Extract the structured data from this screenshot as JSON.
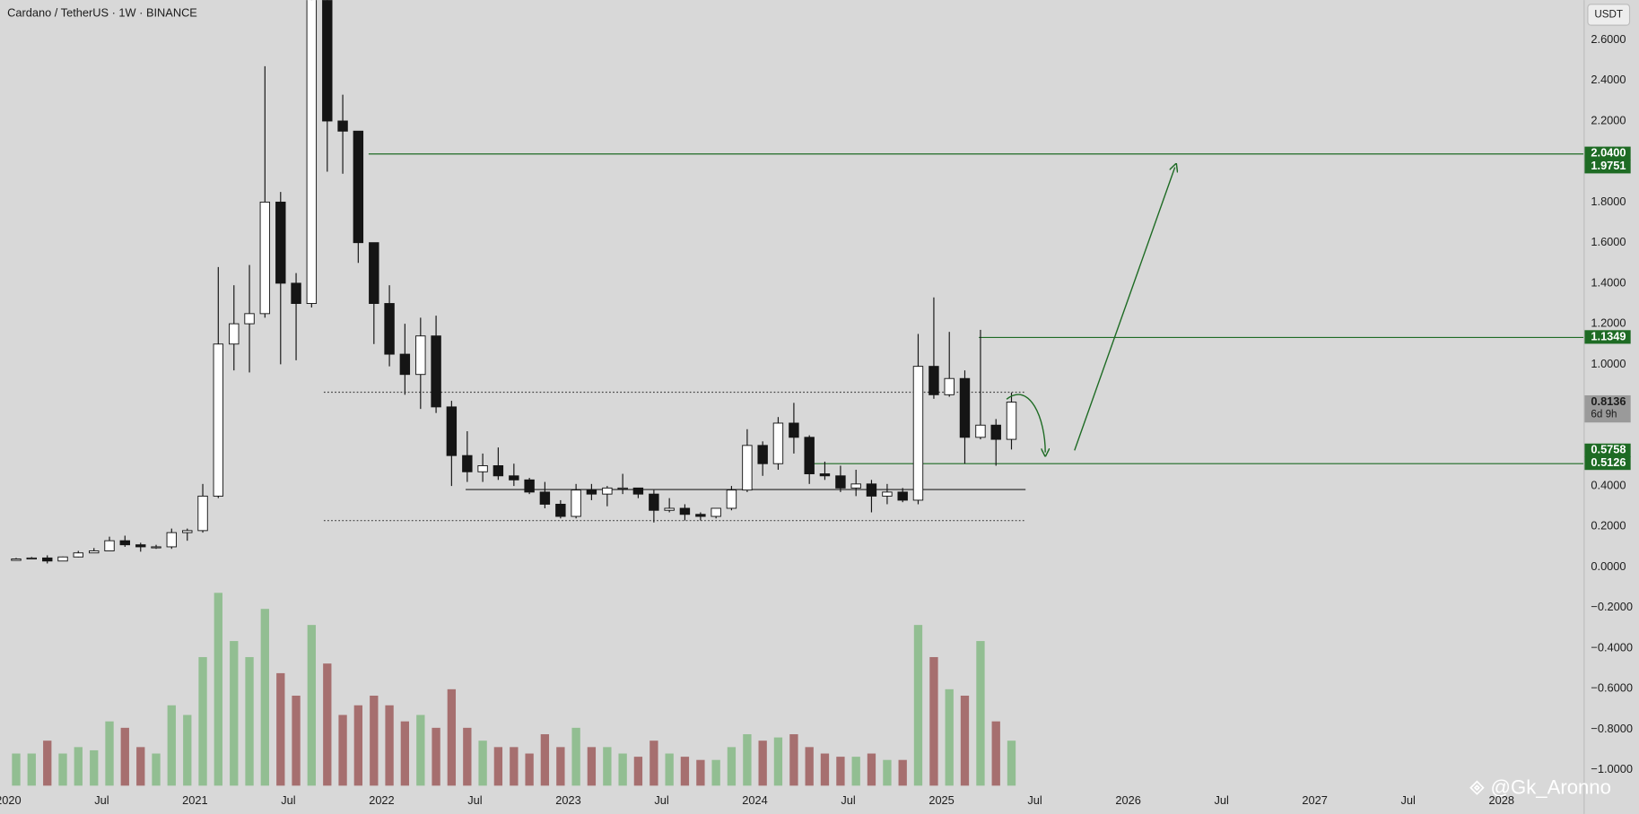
{
  "chart_data": {
    "type": "candlestick",
    "title": "Cardano / TetherUS · 1W · BINANCE",
    "quote_label": "USDT",
    "watermark": "@Gk_Aronno",
    "xlim": [
      2019.955,
      2028.44
    ],
    "ylim": [
      -1.217,
      2.796
    ],
    "xticks": [
      2020,
      {
        "value": 2020.5,
        "label": "Jul"
      },
      2021,
      {
        "value": 2021.5,
        "label": "Jul"
      },
      2022,
      {
        "value": 2022.5,
        "label": "Jul"
      },
      2023,
      {
        "value": 2023.5,
        "label": "Jul"
      },
      2024,
      {
        "value": 2024.5,
        "label": "Jul"
      },
      2025,
      {
        "value": 2025.5,
        "label": "Jul"
      },
      2026,
      {
        "value": 2026.5,
        "label": "Jul"
      },
      2027,
      {
        "value": 2027.5,
        "label": "Jul"
      },
      2028
    ],
    "yticks": [
      {
        "value": 2.6,
        "label": "2.6000"
      },
      {
        "value": 2.4,
        "label": "2.4000"
      },
      {
        "value": 2.2,
        "label": "2.2000"
      },
      {
        "value": 1.8,
        "label": "1.8000"
      },
      {
        "value": 1.6,
        "label": "1.6000"
      },
      {
        "value": 1.4,
        "label": "1.4000"
      },
      {
        "value": 1.2,
        "label": "1.2000"
      },
      {
        "value": 1.0,
        "label": "1.0000"
      },
      {
        "value": 0.4,
        "label": "0.4000"
      },
      {
        "value": 0.2,
        "label": "0.2000"
      },
      {
        "value": 0,
        "label": "0.0000"
      },
      {
        "value": -0.2,
        "label": "−0.2000"
      },
      {
        "value": -0.4,
        "label": "−0.4000"
      },
      {
        "value": -0.6,
        "label": "−0.6000"
      },
      {
        "value": -0.8,
        "label": "−0.8000"
      },
      {
        "value": -1.0,
        "label": "−1.0000"
      }
    ],
    "grid": false,
    "up_color": "#ffffff",
    "down_color": "#151515",
    "wick_color": "#151515",
    "x": [
      2020,
      2020.083,
      2020.167,
      2020.25,
      2020.333,
      2020.417,
      2020.5,
      2020.583,
      2020.667,
      2020.75,
      2020.833,
      2020.917,
      2021,
      2021.083,
      2021.167,
      2021.25,
      2021.333,
      2021.417,
      2021.5,
      2021.583,
      2021.667,
      2021.75,
      2021.833,
      2021.917,
      2022,
      2022.083,
      2022.167,
      2022.25,
      2022.333,
      2022.417,
      2022.5,
      2022.583,
      2022.667,
      2022.75,
      2022.833,
      2022.917,
      2023,
      2023.083,
      2023.167,
      2023.25,
      2023.333,
      2023.417,
      2023.5,
      2023.583,
      2023.667,
      2023.75,
      2023.833,
      2023.917,
      2024,
      2024.083,
      2024.167,
      2024.25,
      2024.333,
      2024.417,
      2024.5,
      2024.583,
      2024.667,
      2024.75,
      2024.833,
      2024.917,
      2025,
      2025.083,
      2025.167,
      2025.25,
      2025.333
    ],
    "open": [
      0.033,
      0.04,
      0.045,
      0.03,
      0.05,
      0.07,
      0.08,
      0.13,
      0.11,
      0.1,
      0.1,
      0.17,
      0.18,
      0.35,
      1.1,
      1.2,
      1.25,
      1.8,
      1.4,
      1.3,
      2.8,
      2.2,
      2.15,
      1.6,
      1.3,
      1.05,
      0.95,
      1.14,
      0.79,
      0.55,
      0.47,
      0.5,
      0.45,
      0.43,
      0.37,
      0.31,
      0.25,
      0.38,
      0.36,
      0.39,
      0.39,
      0.36,
      0.28,
      0.29,
      0.26,
      0.25,
      0.29,
      0.38,
      0.6,
      0.51,
      0.71,
      0.64,
      0.46,
      0.45,
      0.39,
      0.41,
      0.35,
      0.37,
      0.33,
      0.99,
      0.85,
      0.93,
      0.64,
      0.7,
      0.63
    ],
    "high": [
      0.045,
      0.05,
      0.058,
      0.052,
      0.08,
      0.094,
      0.15,
      0.155,
      0.12,
      0.11,
      0.19,
      0.19,
      0.41,
      1.48,
      1.39,
      1.49,
      2.47,
      1.85,
      1.45,
      2.95,
      3.1,
      2.33,
      2.15,
      1.6,
      1.39,
      1.2,
      1.23,
      1.24,
      0.82,
      0.67,
      0.56,
      0.59,
      0.51,
      0.44,
      0.42,
      0.33,
      0.41,
      0.41,
      0.4,
      0.46,
      0.39,
      0.38,
      0.34,
      0.31,
      0.27,
      0.29,
      0.4,
      0.68,
      0.62,
      0.74,
      0.81,
      0.65,
      0.52,
      0.5,
      0.48,
      0.43,
      0.41,
      0.39,
      1.15,
      1.33,
      1.16,
      0.97,
      1.17,
      0.73,
      0.86
    ],
    "low": [
      0.032,
      0.039,
      0.018,
      0.029,
      0.048,
      0.069,
      0.08,
      0.1,
      0.076,
      0.09,
      0.09,
      0.13,
      0.17,
      0.34,
      0.97,
      0.96,
      1.23,
      1.0,
      1.02,
      1.28,
      1.95,
      1.94,
      1.5,
      1.1,
      0.99,
      0.85,
      0.78,
      0.76,
      0.4,
      0.42,
      0.42,
      0.43,
      0.4,
      0.36,
      0.29,
      0.24,
      0.24,
      0.33,
      0.3,
      0.36,
      0.34,
      0.22,
      0.27,
      0.23,
      0.23,
      0.24,
      0.28,
      0.37,
      0.45,
      0.48,
      0.56,
      0.41,
      0.43,
      0.37,
      0.35,
      0.27,
      0.31,
      0.32,
      0.31,
      0.83,
      0.84,
      0.51,
      0.63,
      0.5,
      0.58
    ],
    "close": [
      0.04,
      0.045,
      0.03,
      0.05,
      0.07,
      0.08,
      0.13,
      0.11,
      0.1,
      0.1,
      0.17,
      0.18,
      0.35,
      1.1,
      1.2,
      1.25,
      1.8,
      1.4,
      1.3,
      2.8,
      2.2,
      2.15,
      1.6,
      1.3,
      1.05,
      0.95,
      1.14,
      0.79,
      0.55,
      0.47,
      0.5,
      0.45,
      0.43,
      0.37,
      0.31,
      0.25,
      0.38,
      0.36,
      0.39,
      0.39,
      0.36,
      0.28,
      0.29,
      0.26,
      0.25,
      0.29,
      0.38,
      0.6,
      0.51,
      0.71,
      0.64,
      0.46,
      0.45,
      0.39,
      0.41,
      0.35,
      0.37,
      0.33,
      0.99,
      0.85,
      0.93,
      0.64,
      0.7,
      0.63,
      0.8136
    ],
    "volume": [
      10,
      10,
      14,
      10,
      12,
      11,
      20,
      18,
      12,
      10,
      25,
      22,
      40,
      60,
      45,
      40,
      55,
      35,
      28,
      50,
      38,
      22,
      25,
      28,
      25,
      20,
      22,
      18,
      30,
      18,
      14,
      12,
      12,
      10,
      16,
      12,
      18,
      12,
      12,
      10,
      9,
      14,
      10,
      9,
      8,
      8,
      12,
      16,
      14,
      15,
      16,
      12,
      10,
      9,
      9,
      10,
      8,
      8,
      50,
      40,
      30,
      28,
      45,
      20,
      14
    ],
    "volume_lim": [
      0,
      65
    ],
    "volume_up_color": "rgba(90,170,90,0.55)",
    "volume_down_color": "rgba(140,55,55,0.65)",
    "lines": [
      {
        "value": 2.04,
        "from": 2021.93,
        "color": "#1e6b24",
        "style": "solid"
      },
      {
        "value": 1.1349,
        "from": 2025.2,
        "color": "#1e6b24",
        "style": "solid"
      },
      {
        "value": 0.5126,
        "from": 2024.29,
        "color": "#1e6b24",
        "style": "solid"
      },
      {
        "value": 0.385,
        "from": 2022.45,
        "to": 2025.45,
        "color": "#222222",
        "style": "solid"
      },
      {
        "value": 0.865,
        "from": 2021.69,
        "to": 2025.45,
        "color": "#444444",
        "style": "dotted"
      },
      {
        "value": 0.232,
        "from": 2021.69,
        "to": 2025.45,
        "color": "#444444",
        "style": "dotted"
      }
    ],
    "price_labels": [
      {
        "value": 2.04,
        "label": "2.0400",
        "color": "#1e6b24"
      },
      {
        "value": 1.9751,
        "label": "1.9751",
        "color": "#1e6b24"
      },
      {
        "value": 1.1349,
        "label": "1.1349",
        "color": "#1e6b24"
      },
      {
        "value": 0.8136,
        "label": "0.8136",
        "sub": "6d 9h",
        "color": "#9a9a9a"
      },
      {
        "value": 0.5758,
        "label": "0.5758",
        "color": "#1e6b24"
      },
      {
        "value": 0.5126,
        "label": "0.5126",
        "color": "#1e6b24"
      }
    ]
  }
}
